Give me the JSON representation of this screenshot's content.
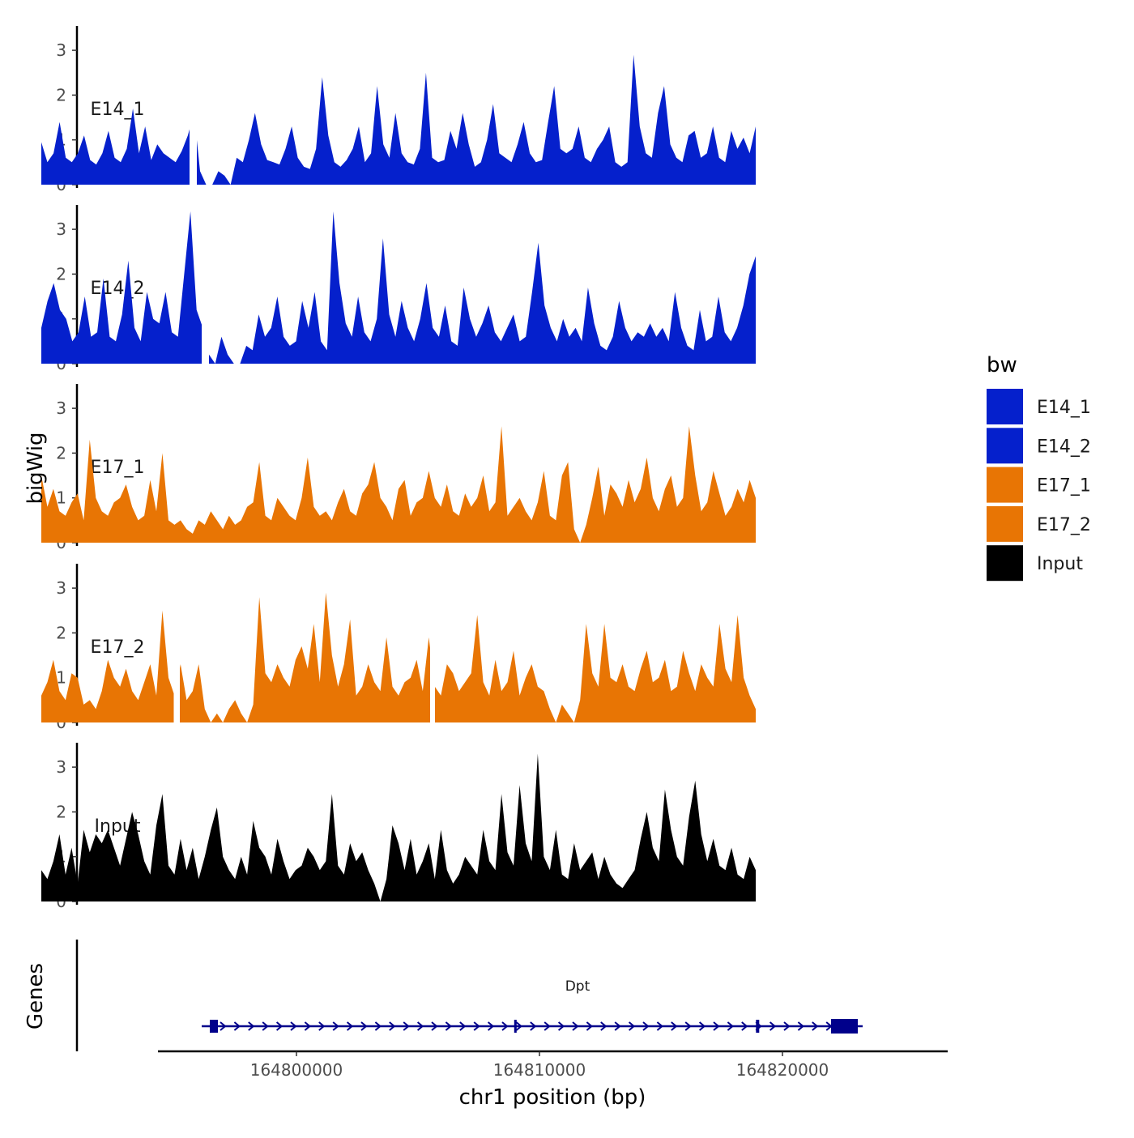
{
  "chart_data": {
    "type": "area",
    "title": "",
    "xlabel": "chr1 position (bp)",
    "ylabel": "bigWig",
    "genes_label": "Genes",
    "xlim": [
      164794300,
      164826800
    ],
    "data_range": [
      164789500,
      164818900
    ],
    "ylim": [
      0,
      3.5
    ],
    "y_ticks": [
      "0",
      "1",
      "2",
      "3"
    ],
    "x_ticks": [
      {
        "value": 164800000,
        "label": "164800000"
      },
      {
        "value": 164810000,
        "label": "164810000"
      },
      {
        "value": 164820000,
        "label": "164820000"
      }
    ],
    "legend_title": "bw",
    "legend": [
      {
        "name": "E14_1",
        "color": "#0520CC"
      },
      {
        "name": "E14_2",
        "color": "#0520CC"
      },
      {
        "name": "E17_1",
        "color": "#E87504"
      },
      {
        "name": "E17_2",
        "color": "#E87504"
      },
      {
        "name": "Input",
        "color": "#000000"
      }
    ],
    "series": [
      {
        "name": "E14_1",
        "color": "#0520CC",
        "values": [
          0.95,
          0.5,
          0.7,
          1.4,
          0.6,
          0.5,
          0.7,
          1.1,
          0.55,
          0.45,
          0.7,
          1.2,
          0.6,
          0.5,
          0.8,
          1.7,
          0.7,
          1.3,
          0.55,
          0.9,
          0.7,
          0.6,
          0.5,
          0.75,
          1.1,
          1.6,
          0.3,
          0,
          0,
          0.3,
          0.2,
          0,
          0.6,
          0.5,
          1.0,
          1.6,
          0.9,
          0.55,
          0.5,
          0.45,
          0.8,
          1.3,
          0.6,
          0.4,
          0.35,
          0.8,
          2.4,
          1.1,
          0.5,
          0.4,
          0.55,
          0.8,
          1.3,
          0.5,
          0.7,
          2.2,
          0.9,
          0.6,
          1.6,
          0.7,
          0.5,
          0.45,
          0.8,
          2.5,
          0.6,
          0.5,
          0.55,
          1.2,
          0.8,
          1.6,
          0.9,
          0.4,
          0.5,
          1.0,
          1.8,
          0.7,
          0.6,
          0.5,
          0.9,
          1.4,
          0.7,
          0.5,
          0.55,
          1.4,
          2.2,
          0.8,
          0.7,
          0.8,
          1.3,
          0.6,
          0.5,
          0.8,
          1.0,
          1.3,
          0.5,
          0.4,
          0.5,
          2.9,
          1.3,
          0.7,
          0.6,
          1.6,
          2.2,
          0.9,
          0.6,
          0.5,
          1.1,
          1.2,
          0.6,
          0.7,
          1.3,
          0.6,
          0.5,
          1.2,
          0.8,
          1.05,
          0.7,
          1.3
        ],
        "gaps": [
          [
            164795600,
            164795900
          ]
        ]
      },
      {
        "name": "E14_2",
        "color": "#0520CC",
        "values": [
          0.8,
          1.4,
          1.8,
          1.2,
          1.0,
          0.5,
          0.7,
          1.5,
          0.6,
          0.7,
          1.9,
          0.6,
          0.5,
          1.1,
          2.3,
          0.8,
          0.5,
          1.6,
          1.0,
          0.9,
          1.6,
          0.7,
          0.6,
          2.0,
          3.4,
          1.2,
          0.8,
          0.2,
          0,
          0.6,
          0.2,
          0,
          0,
          0.4,
          0.3,
          1.1,
          0.6,
          0.8,
          1.5,
          0.6,
          0.4,
          0.5,
          1.4,
          0.8,
          1.6,
          0.5,
          0.3,
          3.4,
          1.8,
          0.9,
          0.6,
          1.5,
          0.7,
          0.5,
          1.0,
          2.8,
          1.1,
          0.6,
          1.4,
          0.8,
          0.5,
          1.0,
          1.8,
          0.8,
          0.6,
          1.3,
          0.5,
          0.4,
          1.7,
          1.0,
          0.6,
          0.9,
          1.3,
          0.7,
          0.5,
          0.8,
          1.1,
          0.5,
          0.6,
          1.6,
          2.7,
          1.3,
          0.8,
          0.5,
          1.0,
          0.6,
          0.8,
          0.5,
          1.7,
          0.9,
          0.4,
          0.3,
          0.6,
          1.4,
          0.8,
          0.5,
          0.7,
          0.6,
          0.9,
          0.6,
          0.8,
          0.5,
          1.6,
          0.8,
          0.4,
          0.3,
          1.2,
          0.5,
          0.6,
          1.5,
          0.7,
          0.5,
          0.8,
          1.3,
          2.0,
          2.4
        ],
        "gaps": [
          [
            164796100,
            164796400
          ]
        ]
      },
      {
        "name": "E17_1",
        "color": "#E87504",
        "values": [
          1.5,
          0.8,
          1.2,
          0.7,
          0.6,
          0.9,
          1.1,
          0.5,
          2.3,
          1.0,
          0.7,
          0.6,
          0.9,
          1.0,
          1.3,
          0.8,
          0.5,
          0.6,
          1.4,
          0.7,
          2.0,
          0.5,
          0.4,
          0.5,
          0.3,
          0.2,
          0.5,
          0.4,
          0.7,
          0.5,
          0.3,
          0.6,
          0.4,
          0.5,
          0.8,
          0.9,
          1.8,
          0.6,
          0.5,
          1.0,
          0.8,
          0.6,
          0.5,
          1.0,
          1.9,
          0.8,
          0.6,
          0.7,
          0.5,
          0.9,
          1.2,
          0.7,
          0.6,
          1.1,
          1.3,
          1.8,
          1.0,
          0.8,
          0.5,
          1.2,
          1.4,
          0.6,
          0.9,
          1.0,
          1.6,
          1.0,
          0.8,
          1.3,
          0.7,
          0.6,
          1.1,
          0.8,
          1.0,
          1.5,
          0.7,
          0.9,
          2.6,
          0.6,
          0.8,
          1.0,
          0.7,
          0.5,
          0.9,
          1.6,
          0.6,
          0.5,
          1.5,
          1.8,
          0.3,
          0,
          0.4,
          1.0,
          1.7,
          0.6,
          1.3,
          1.1,
          0.8,
          1.4,
          0.9,
          1.2,
          1.9,
          1.0,
          0.7,
          1.2,
          1.5,
          0.8,
          1.0,
          2.6,
          1.5,
          0.7,
          0.9,
          1.6,
          1.1,
          0.6,
          0.8,
          1.2,
          0.9,
          1.4,
          1.0
        ]
      },
      {
        "name": "E17_2",
        "color": "#E87504",
        "values": [
          0.6,
          0.9,
          1.4,
          0.7,
          0.5,
          1.1,
          1.0,
          0.4,
          0.5,
          0.3,
          0.7,
          1.4,
          1.0,
          0.8,
          1.2,
          0.7,
          0.5,
          0.9,
          1.3,
          0.6,
          2.5,
          1.0,
          0.6,
          1.3,
          0.5,
          0.7,
          1.3,
          0.3,
          0,
          0.2,
          0,
          0.3,
          0.5,
          0.2,
          0,
          0.4,
          2.8,
          1.1,
          0.9,
          1.3,
          1.0,
          0.8,
          1.4,
          1.7,
          1.2,
          2.2,
          0.9,
          2.9,
          1.5,
          0.8,
          1.3,
          2.3,
          0.6,
          0.8,
          1.3,
          0.9,
          0.7,
          1.9,
          0.8,
          0.6,
          0.9,
          1.0,
          1.4,
          0.7,
          1.9,
          0.8,
          0.6,
          1.3,
          1.1,
          0.7,
          0.9,
          1.1,
          2.4,
          0.9,
          0.6,
          1.4,
          0.7,
          0.9,
          1.6,
          0.6,
          1.0,
          1.3,
          0.8,
          0.7,
          0.3,
          0,
          0.4,
          0.2,
          0,
          0.5,
          2.2,
          1.1,
          0.8,
          2.2,
          1.0,
          0.9,
          1.3,
          0.8,
          0.7,
          1.2,
          1.6,
          0.9,
          1.0,
          1.4,
          0.7,
          0.8,
          1.6,
          1.1,
          0.7,
          1.3,
          1.0,
          0.8,
          2.2,
          1.2,
          0.9,
          2.4,
          1.0,
          0.6,
          0.3
        ],
        "gaps": [
          [
            164794950,
            164795200
          ],
          [
            164805500,
            164805700
          ]
        ]
      },
      {
        "name": "Input",
        "color": "#000000",
        "values": [
          0.7,
          0.5,
          0.9,
          1.5,
          0.6,
          1.2,
          0.4,
          1.6,
          1.1,
          1.5,
          1.3,
          1.6,
          1.2,
          0.8,
          1.4,
          2.0,
          1.5,
          0.9,
          0.6,
          1.7,
          2.4,
          0.8,
          0.6,
          1.4,
          0.7,
          1.2,
          0.5,
          1.0,
          1.6,
          2.1,
          1.0,
          0.7,
          0.5,
          1.0,
          0.6,
          1.8,
          1.2,
          1.0,
          0.6,
          1.4,
          0.9,
          0.5,
          0.7,
          0.8,
          1.2,
          1.0,
          0.7,
          0.9,
          2.4,
          0.8,
          0.6,
          1.3,
          0.9,
          1.1,
          0.7,
          0.4,
          0,
          0.5,
          1.7,
          1.3,
          0.7,
          1.4,
          0.6,
          0.9,
          1.3,
          0.5,
          1.6,
          0.7,
          0.4,
          0.6,
          1.0,
          0.8,
          0.6,
          1.6,
          0.9,
          0.7,
          2.4,
          1.1,
          0.8,
          2.6,
          1.3,
          0.9,
          3.3,
          1.0,
          0.7,
          1.6,
          0.6,
          0.5,
          1.3,
          0.7,
          0.9,
          1.1,
          0.5,
          1.0,
          0.6,
          0.4,
          0.3,
          0.5,
          0.7,
          1.4,
          2.0,
          1.2,
          0.9,
          2.5,
          1.6,
          1.0,
          0.8,
          1.9,
          2.7,
          1.5,
          0.9,
          1.4,
          0.8,
          0.7,
          1.2,
          0.6,
          0.5,
          1.0,
          0.7
        ]
      }
    ],
    "genes": [
      {
        "name": "Dpt",
        "start": 164796300,
        "end": 164823100,
        "strand": "+"
      }
    ]
  }
}
